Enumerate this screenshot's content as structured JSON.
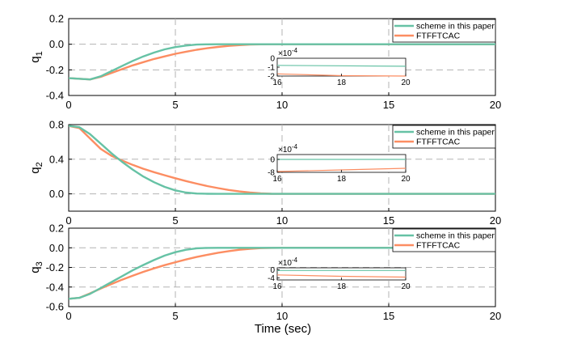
{
  "chart_data": {
    "type": "line",
    "xlabel": "Time (sec)",
    "xlim": [
      0,
      20
    ],
    "xticks": [
      0,
      5,
      10,
      15,
      20
    ],
    "xtick_labels": [
      "0",
      "5",
      "10",
      "15",
      "20"
    ],
    "series_colors": {
      "scheme in this paper": "#66c2a5",
      "FTFFTCAC": "#fc8d62"
    },
    "panels": [
      {
        "ylabel": "q",
        "ylabel_sub": "1",
        "ylim": [
          -0.4,
          0.2
        ],
        "yticks": [
          -0.4,
          -0.2,
          0.0,
          0.2
        ],
        "ytick_labels": [
          "-0.4",
          "-0.2",
          "0.0",
          "0.2"
        ],
        "legend": [
          "scheme in this paper",
          "FTFFTCAC"
        ],
        "series": [
          {
            "name": "scheme in this paper",
            "t": [
              0,
              1,
              1.5,
              2,
              2.5,
              3,
              3.5,
              4,
              4.5,
              5,
              5.5,
              6,
              6.5,
              7,
              8,
              9,
              10,
              12,
              15,
              20
            ],
            "values": [
              -0.265,
              -0.275,
              -0.25,
              -0.21,
              -0.17,
              -0.13,
              -0.095,
              -0.065,
              -0.04,
              -0.022,
              -0.01,
              -0.003,
              -0.001,
              0,
              0,
              0,
              0,
              0,
              0,
              0
            ]
          },
          {
            "name": "FTFFTCAC",
            "t": [
              0,
              1,
              1.5,
              2,
              2.5,
              3,
              3.5,
              4,
              4.5,
              5,
              5.5,
              6,
              6.5,
              7,
              7.5,
              8,
              8.5,
              9,
              9.5,
              10,
              12,
              15,
              20
            ],
            "values": [
              -0.265,
              -0.275,
              -0.255,
              -0.225,
              -0.195,
              -0.165,
              -0.14,
              -0.115,
              -0.095,
              -0.075,
              -0.058,
              -0.043,
              -0.031,
              -0.021,
              -0.013,
              -0.007,
              -0.003,
              -0.001,
              0,
              0,
              0,
              0,
              0
            ]
          }
        ],
        "inset": {
          "exponent_label": "×10",
          "exponent_power": "-4",
          "xlim": [
            16,
            20
          ],
          "ylim": [
            -2,
            0
          ],
          "xticks": [
            16,
            18,
            20
          ],
          "xtick_labels": [
            "16",
            "18",
            "20"
          ],
          "yticks": [
            -2,
            -1,
            0
          ],
          "ytick_labels": [
            "-2",
            "-1",
            "0"
          ],
          "series": [
            {
              "name": "scheme in this paper",
              "t": [
                16,
                20
              ],
              "values": [
                -0.8,
                -0.9
              ]
            },
            {
              "name": "FTFFTCAC",
              "t": [
                16,
                18,
                20
              ],
              "values": [
                -1.75,
                -1.95,
                -2.0
              ]
            }
          ]
        }
      },
      {
        "ylabel": "q",
        "ylabel_sub": "2",
        "ylim": [
          -0.2,
          0.8
        ],
        "yticks": [
          0.0,
          0.4,
          0.8
        ],
        "ytick_labels": [
          "0.0",
          "0.4",
          "0.8"
        ],
        "legend": [
          "scheme in this paper",
          "FTFFTCAC"
        ],
        "series": [
          {
            "name": "scheme in this paper",
            "t": [
              0,
              0.5,
              1,
              1.5,
              2,
              2.5,
              3,
              3.5,
              4,
              4.5,
              5,
              5.5,
              6,
              6.5,
              7,
              8,
              10,
              15,
              20
            ],
            "values": [
              0.785,
              0.77,
              0.69,
              0.58,
              0.47,
              0.37,
              0.28,
              0.2,
              0.135,
              0.08,
              0.04,
              0.015,
              0.004,
              0.001,
              0,
              0,
              0,
              0,
              0
            ]
          },
          {
            "name": "FTFFTCAC",
            "t": [
              0,
              0.5,
              1,
              1.5,
              2,
              2.5,
              3,
              3.5,
              4,
              4.5,
              5,
              5.5,
              6,
              6.5,
              7,
              7.5,
              8,
              8.5,
              9,
              9.5,
              10,
              15,
              20
            ],
            "values": [
              0.785,
              0.76,
              0.64,
              0.52,
              0.44,
              0.385,
              0.335,
              0.29,
              0.25,
              0.215,
              0.18,
              0.148,
              0.118,
              0.09,
              0.066,
              0.045,
              0.028,
              0.015,
              0.006,
              0.001,
              0,
              0,
              0
            ]
          }
        ],
        "inset": {
          "exponent_label": "×10",
          "exponent_power": "-4",
          "xlim": [
            16,
            20
          ],
          "ylim": [
            -8,
            3
          ],
          "xticks": [
            16,
            18,
            20
          ],
          "xtick_labels": [
            "16",
            "18",
            "20"
          ],
          "yticks": [
            -8,
            0
          ],
          "ytick_labels": [
            "-8",
            "0"
          ],
          "series": [
            {
              "name": "scheme in this paper",
              "t": [
                16,
                20
              ],
              "values": [
                0,
                0
              ]
            },
            {
              "name": "FTFFTCAC",
              "t": [
                16,
                18,
                20
              ],
              "values": [
                -7.5,
                -6.5,
                -5.5
              ]
            }
          ]
        }
      },
      {
        "ylabel": "q",
        "ylabel_sub": "3",
        "ylim": [
          -0.6,
          0.2
        ],
        "yticks": [
          -0.6,
          -0.4,
          -0.2,
          0.0,
          0.2
        ],
        "ytick_labels": [
          "-0.6",
          "-0.4",
          "-0.2",
          "0.0",
          "0.2"
        ],
        "legend": [
          "scheme in this paper",
          "FTFFTCAC"
        ],
        "series": [
          {
            "name": "scheme in this paper",
            "t": [
              0,
              0.5,
              1,
              1.5,
              2,
              2.5,
              3,
              3.5,
              4,
              4.5,
              5,
              5.5,
              6,
              6.5,
              7,
              8,
              10,
              15,
              20
            ],
            "values": [
              -0.52,
              -0.51,
              -0.47,
              -0.41,
              -0.35,
              -0.29,
              -0.23,
              -0.175,
              -0.125,
              -0.08,
              -0.045,
              -0.02,
              -0.005,
              -0.001,
              0,
              0,
              0,
              0,
              0
            ]
          },
          {
            "name": "FTFFTCAC",
            "t": [
              0,
              0.5,
              1,
              1.5,
              2,
              2.5,
              3,
              3.5,
              4,
              4.5,
              5,
              5.5,
              6,
              6.5,
              7,
              7.5,
              8,
              8.5,
              9,
              9.5,
              10,
              15,
              20
            ],
            "values": [
              -0.52,
              -0.51,
              -0.465,
              -0.415,
              -0.37,
              -0.325,
              -0.285,
              -0.245,
              -0.21,
              -0.177,
              -0.147,
              -0.119,
              -0.094,
              -0.071,
              -0.051,
              -0.034,
              -0.02,
              -0.01,
              -0.004,
              -0.001,
              0,
              0,
              0
            ]
          }
        ],
        "inset": {
          "exponent_label": "×10",
          "exponent_power": "-4",
          "xlim": [
            16,
            20
          ],
          "ylim": [
            -5,
            1
          ],
          "xticks": [
            16,
            18,
            20
          ],
          "xtick_labels": [
            "16",
            "18",
            "20"
          ],
          "yticks": [
            -4,
            0
          ],
          "ytick_labels": [
            "-4",
            "0"
          ],
          "series": [
            {
              "name": "scheme in this paper",
              "t": [
                16,
                20
              ],
              "values": [
                -0.3,
                -0.3
              ]
            },
            {
              "name": "FTFFTCAC",
              "t": [
                16,
                18,
                20
              ],
              "values": [
                -2.5,
                -3.2,
                -3.6
              ]
            }
          ]
        }
      }
    ]
  }
}
